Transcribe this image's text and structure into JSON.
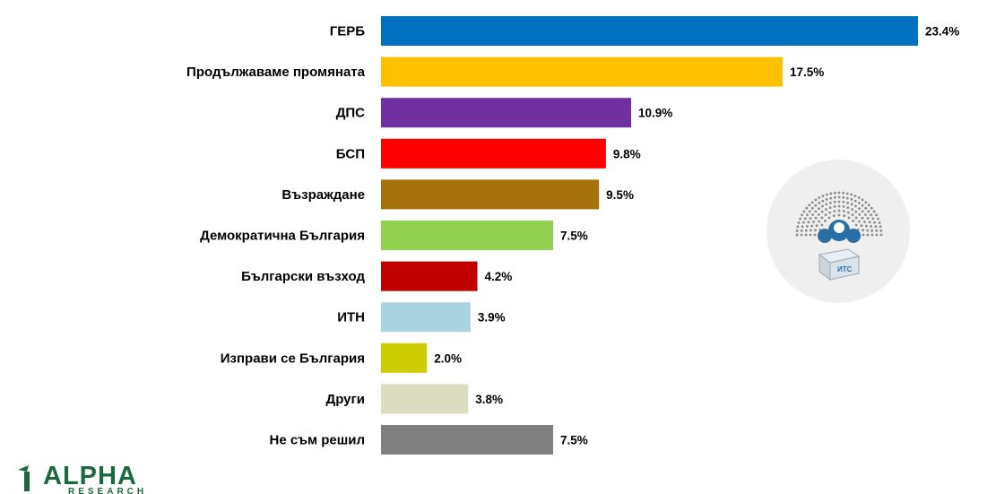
{
  "chart_data": {
    "type": "bar",
    "orientation": "horizontal",
    "categories": [
      "ГЕРБ",
      "Продължаваме промяната",
      "ДПС",
      "БСП",
      "Възраждане",
      "Демократична България",
      "Български възход",
      "ИТН",
      "Изправи се България",
      "Други",
      "Не съм решил"
    ],
    "values": [
      23.4,
      17.5,
      10.9,
      9.8,
      9.5,
      7.5,
      4.2,
      3.9,
      2.0,
      3.8,
      7.5
    ],
    "value_labels": [
      "23.4%",
      "17.5%",
      "10.9%",
      "9.8%",
      "9.5%",
      "7.5%",
      "4.2%",
      "3.9%",
      "2.0%",
      "3.8%",
      "7.5%"
    ],
    "colors": [
      "#0070c0",
      "#ffc000",
      "#7030a0",
      "#ff0000",
      "#a6700b",
      "#92d050",
      "#c00000",
      "#a9d3e1",
      "#cccc00",
      "#dcdcc0",
      "#808080"
    ],
    "unit": "%",
    "xlim": [
      0,
      23.4
    ],
    "grid": false,
    "legend": "none"
  },
  "logo": {
    "text": "ALPHA",
    "subtext": "RESEARCH"
  },
  "decor": {
    "parliament_icon": "parliament-ballot-icon",
    "ballot_box_text": "ИТС"
  }
}
